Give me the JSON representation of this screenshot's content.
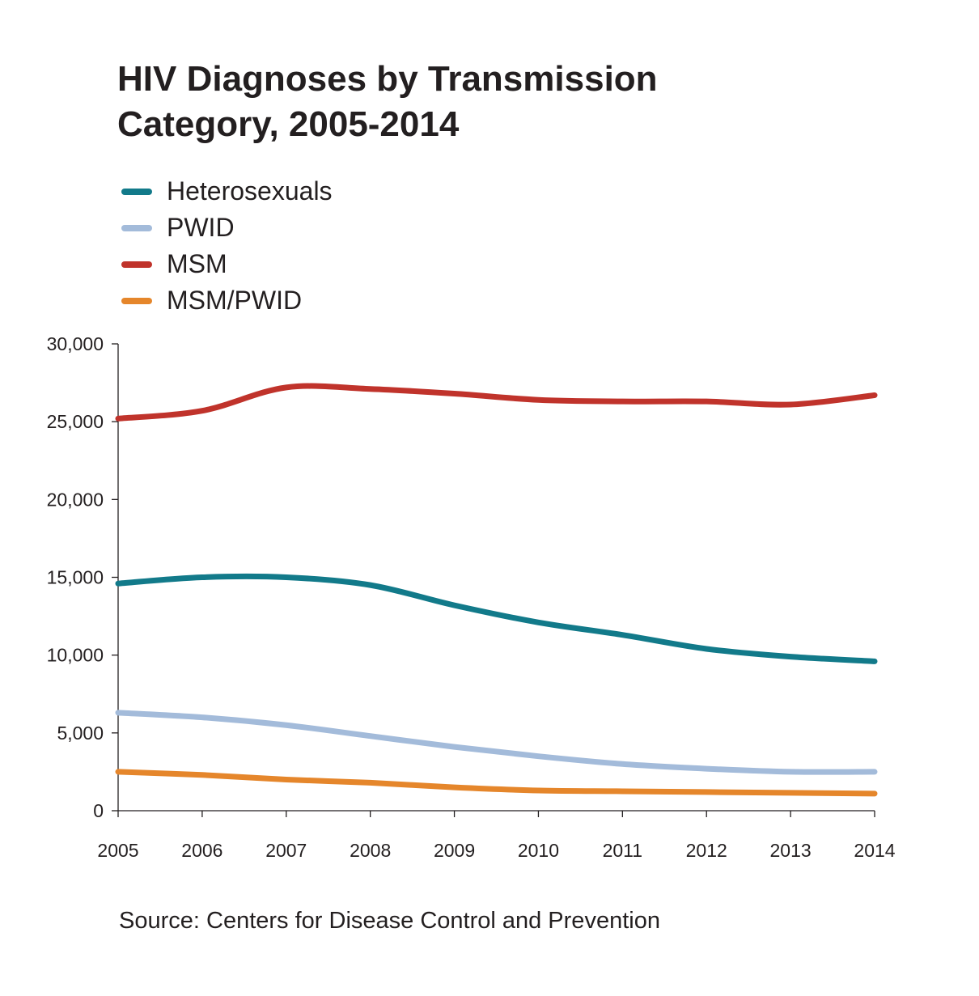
{
  "title_lines": [
    "HIV Diagnoses by Transmission",
    "Category, 2005-2014"
  ],
  "source": "Source: Centers for Disease Control and Prevention",
  "chart_data": {
    "type": "line",
    "title": "HIV Diagnoses by Transmission Category, 2005-2014",
    "xlabel": "",
    "ylabel": "",
    "x": [
      2005,
      2006,
      2007,
      2008,
      2009,
      2010,
      2011,
      2012,
      2013,
      2014
    ],
    "x_tick_labels": [
      "2005",
      "2006",
      "2007",
      "2008",
      "2009",
      "2010",
      "2011",
      "2012",
      "2013",
      "2014"
    ],
    "y_ticks": [
      0,
      5000,
      10000,
      15000,
      20000,
      25000,
      30000
    ],
    "y_tick_labels": [
      "0",
      "5,000",
      "10,000",
      "15,000",
      "20,000",
      "25,000",
      "30,000"
    ],
    "ylim": [
      0,
      30000
    ],
    "xlim": [
      2005,
      2014
    ],
    "grid": false,
    "legend_position": "top-left",
    "series": [
      {
        "name": "Heterosexuals",
        "color": "#127a8a",
        "values": [
          14600,
          15000,
          15000,
          14500,
          13200,
          12100,
          11300,
          10400,
          9900,
          9600
        ]
      },
      {
        "name": "PWID",
        "color": "#a3bbda",
        "values": [
          6300,
          6000,
          5500,
          4800,
          4100,
          3500,
          3000,
          2700,
          2500,
          2500
        ]
      },
      {
        "name": "MSM",
        "color": "#c0332b",
        "values": [
          25200,
          25700,
          27200,
          27100,
          26800,
          26400,
          26300,
          26300,
          26100,
          26700
        ]
      },
      {
        "name": "MSM/PWID",
        "color": "#e5862b",
        "values": [
          2500,
          2300,
          2000,
          1800,
          1500,
          1300,
          1250,
          1200,
          1150,
          1100
        ]
      }
    ]
  }
}
